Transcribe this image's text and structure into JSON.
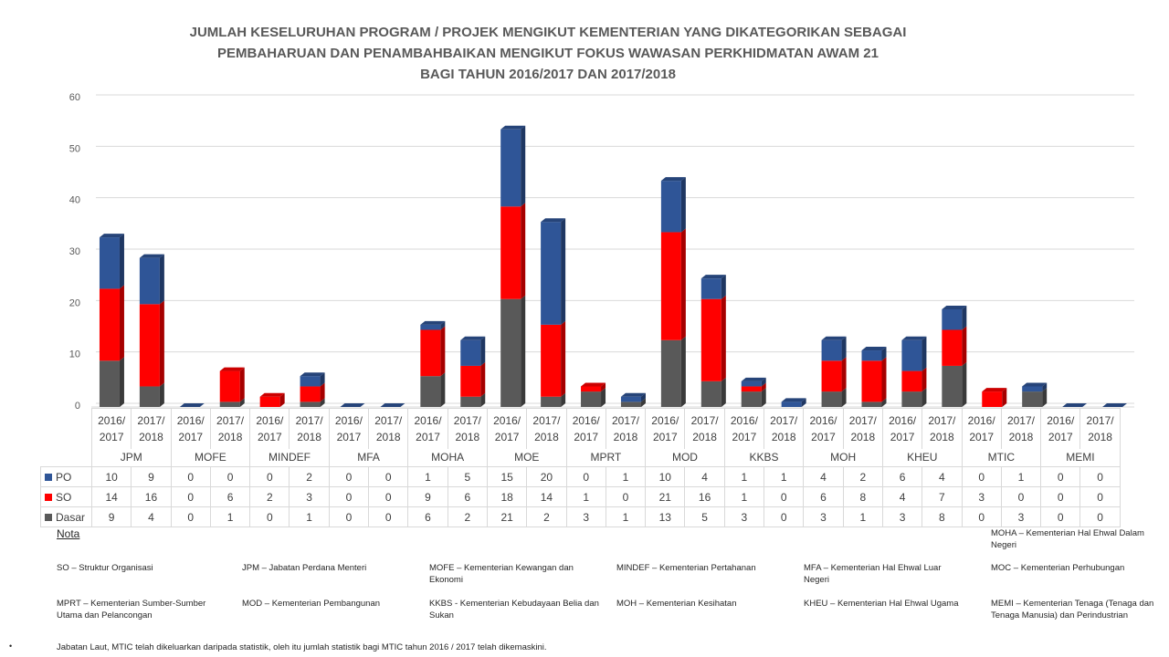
{
  "title_lines": [
    "JUMLAH KESELURUHAN PROGRAM / PROJEK MENGIKUT KEMENTERIAN YANG DIKATEGORIKAN SEBAGAI",
    "PEMBAHARUAN DAN PENAMBAHBAIKAN MENGIKUT FOKUS WAWASAN PERKHIDMATAN AWAM 21",
    "BAGI TAHUN 2016/2017 DAN 2017/2018"
  ],
  "colors": {
    "PO": "#2f5597",
    "SO": "#ff0000",
    "Dasar": "#595959"
  },
  "chart_data": {
    "type": "bar",
    "stacked": true,
    "three_d": true,
    "ylim": [
      0,
      60
    ],
    "yticks": [
      "0",
      "10",
      "20",
      "30",
      "40",
      "50",
      "60"
    ],
    "grid": true,
    "groups": [
      "JPM",
      "MOFE",
      "MINDEF",
      "MFA",
      "MOHA",
      "MOE",
      "MPRT",
      "MOD",
      "KKBS",
      "MOH",
      "KHEU",
      "MTIC",
      "MEMI"
    ],
    "years": [
      "2016/\n2017",
      "2017/\n2018"
    ],
    "series": [
      {
        "name": "PO",
        "values": [
          10,
          9,
          0,
          0,
          0,
          2,
          0,
          0,
          1,
          5,
          15,
          20,
          0,
          1,
          10,
          4,
          1,
          1,
          4,
          2,
          6,
          4,
          0,
          1,
          0,
          0
        ]
      },
      {
        "name": "SO",
        "values": [
          14,
          16,
          0,
          6,
          2,
          3,
          0,
          0,
          9,
          6,
          18,
          14,
          1,
          0,
          21,
          16,
          1,
          0,
          6,
          8,
          4,
          7,
          3,
          0,
          0,
          0
        ]
      },
      {
        "name": "Dasar",
        "values": [
          9,
          4,
          0,
          1,
          0,
          1,
          0,
          0,
          6,
          2,
          21,
          2,
          3,
          1,
          13,
          5,
          3,
          0,
          3,
          1,
          3,
          8,
          0,
          3,
          0,
          0
        ]
      }
    ],
    "legend_order": [
      "PO",
      "SO",
      "Dasar"
    ]
  },
  "nota": {
    "title": "Nota",
    "items": [
      "MOHA – Kementerian Hal Ehwal Dalam Negeri",
      "SO – Struktur Organisasi",
      "JPM – Jabatan Perdana Menteri",
      "MOFE – Kementerian Kewangan dan Ekonomi",
      "MINDEF – Kementerian Pertahanan",
      "MFA – Kementerian Hal Ehwal Luar Negeri",
      "MOC – Kementerian Perhubungan",
      "MPRT – Kementerian Sumber-Sumber Utama dan Pelancongan",
      "MOD – Kementerian Pembangunan",
      "KKBS -  Kementerian Kebudayaan Belia dan Sukan",
      "MOH – Kementerian Kesihatan",
      "KHEU – Kementerian Hal Ehwal Ugama",
      "MEMI – Kementerian Tenaga (Tenaga dan Tenaga Manusia) dan Perindustrian"
    ],
    "bullet": "•",
    "footnote": "Jabatan Laut, MTIC telah dikeluarkan daripada statistik, oleh itu jumlah statistik bagi MTIC tahun 2016 / 2017 telah dikemaskini."
  }
}
